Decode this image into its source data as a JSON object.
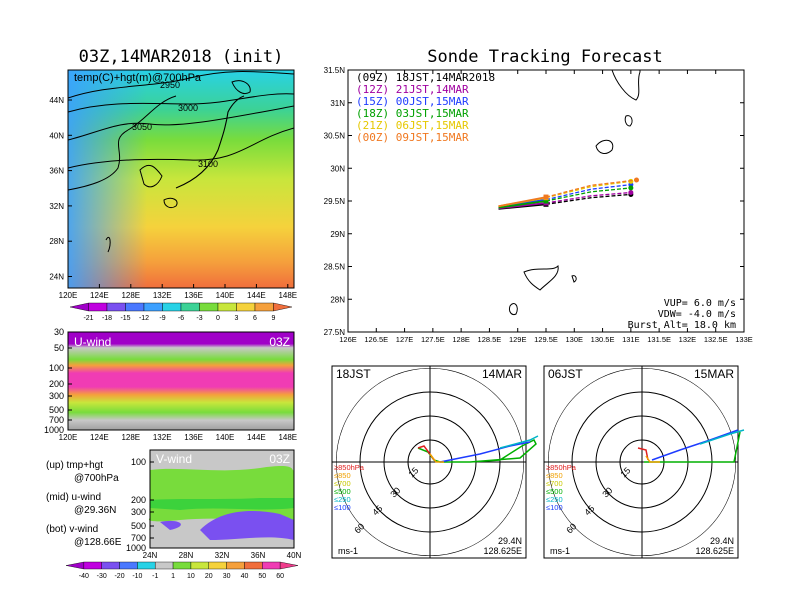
{
  "left_title": "03Z,14MAR2018 (init)",
  "main_title": "Sonde Tracking Forecast",
  "map700": {
    "label": "temp(C)+hgt(m)@700hPa",
    "contours": [
      "2950",
      "3000",
      "3050",
      "3100"
    ],
    "lat_ticks": [
      "44N",
      "40N",
      "36N",
      "32N",
      "28N",
      "24N"
    ],
    "lon_ticks": [
      "120E",
      "124E",
      "128E",
      "132E",
      "136E",
      "140E",
      "144E",
      "148E"
    ],
    "colorbar_labels": [
      "-21",
      "-18",
      "-15",
      "-12",
      "-9",
      "-6",
      "-3",
      "0",
      "3",
      "6",
      "9"
    ],
    "colorbar_colors": [
      "#a000c8",
      "#c000e0",
      "#7a50f0",
      "#4a78ff",
      "#3ca0ff",
      "#28d2e6",
      "#3cd296",
      "#78dc3c",
      "#c8e63c",
      "#f5d23c",
      "#f5a03c",
      "#f06e3c"
    ]
  },
  "uwind": {
    "label": "U-wind",
    "time": "03Z",
    "p_ticks": [
      "30",
      "50",
      "100",
      "200",
      "300",
      "500",
      "700",
      "1000"
    ],
    "lon_ticks": [
      "120E",
      "124E",
      "128E",
      "132E",
      "136E",
      "140E",
      "144E",
      "148E"
    ]
  },
  "vwind": {
    "label": "V-wind",
    "time": "03Z",
    "p_ticks": [
      "100",
      "200",
      "300",
      "500",
      "700",
      "1000"
    ],
    "lat_ticks": [
      "24N",
      "28N",
      "32N",
      "36N",
      "40N"
    ],
    "colorbar_labels": [
      "-40",
      "-30",
      "-20",
      "-10",
      "-1",
      "1",
      "10",
      "20",
      "30",
      "40",
      "50",
      "60"
    ],
    "colorbar_colors": [
      "#a000c8",
      "#c000e0",
      "#7a50f0",
      "#4a78ff",
      "#28d2e6",
      "#c8c8c8",
      "#78dc3c",
      "#c8e63c",
      "#f5d23c",
      "#f5a03c",
      "#f06e3c",
      "#f03cb4",
      "#f03c8c"
    ]
  },
  "notes": [
    {
      "a": "(up) tmp+hgt",
      "b": "@700hPa"
    },
    {
      "a": "(mid) u-wind",
      "b": "@29.36N"
    },
    {
      "a": "(bot) v-wind",
      "b": "@128.66E"
    }
  ],
  "track": {
    "legend": [
      {
        "text": "(09Z) 18JST,14MAR2018",
        "color": "#000000"
      },
      {
        "text": "(12Z) 21JST,14MAR",
        "color": "#a000a0"
      },
      {
        "text": "(15Z) 00JST,15MAR",
        "color": "#1e3cff"
      },
      {
        "text": "(18Z) 03JST,15MAR",
        "color": "#00a000"
      },
      {
        "text": "(21Z) 06JST,15MAR",
        "color": "#e6c800"
      },
      {
        "text": "(00Z) 09JST,15MAR",
        "color": "#f07820"
      }
    ],
    "lat_ticks": [
      "31.5N",
      "31N",
      "30.5N",
      "30N",
      "29.5N",
      "29N",
      "28.5N",
      "28N",
      "27.5N"
    ],
    "lon_ticks": [
      "126E",
      "126.5E",
      "127E",
      "127.5E",
      "128E",
      "128.5E",
      "129E",
      "129.5E",
      "130E",
      "130.5E",
      "131E",
      "131.5E",
      "132E",
      "132.5E",
      "133E"
    ],
    "info": [
      "VUP= 6.0 m/s",
      "VDW= -4.0 m/s",
      "Burst Alt= 18.0 km"
    ]
  },
  "chart_data": {
    "type": "line",
    "xlim": [
      126,
      133
    ],
    "ylim": [
      27.5,
      31.5
    ],
    "xlabel": "",
    "ylabel": "",
    "series": [
      {
        "name": "(09Z) 18JST,14MAR2018",
        "color": "#000000",
        "x": [
          128.66,
          129.5,
          130.3,
          131.0
        ],
        "y": [
          29.38,
          29.45,
          29.55,
          29.6
        ]
      },
      {
        "name": "(12Z) 21JST,14MAR",
        "color": "#a000a0",
        "x": [
          128.66,
          129.5,
          130.3,
          131.0
        ],
        "y": [
          29.39,
          29.47,
          29.58,
          29.63
        ]
      },
      {
        "name": "(15Z) 00JST,15MAR",
        "color": "#1e3cff",
        "x": [
          128.66,
          129.5,
          130.3,
          131.0
        ],
        "y": [
          29.41,
          29.52,
          29.68,
          29.75
        ]
      },
      {
        "name": "(18Z) 03JST,15MAR",
        "color": "#00a000",
        "x": [
          128.66,
          129.5,
          130.3,
          131.0
        ],
        "y": [
          29.4,
          29.5,
          29.64,
          29.7
        ]
      },
      {
        "name": "(21Z) 06JST,15MAR",
        "color": "#e6c800",
        "x": [
          128.66,
          129.5,
          130.3,
          131.0
        ],
        "y": [
          29.42,
          29.55,
          29.72,
          29.8
        ]
      },
      {
        "name": "(00Z) 09JST,15MAR",
        "color": "#f07820",
        "x": [
          128.66,
          129.5,
          130.3,
          131.1
        ],
        "y": [
          29.42,
          29.56,
          29.74,
          29.82
        ]
      }
    ]
  },
  "hodo": [
    {
      "left": "18JST",
      "right": "14MAR",
      "lat": "29.4N",
      "lon": "128.625E",
      "unit": "ms-1",
      "ring_labels": [
        "15",
        "30",
        "45",
        "60"
      ]
    },
    {
      "left": "06JST",
      "right": "15MAR",
      "lat": "29.4N",
      "lon": "128.625E",
      "unit": "ms-1",
      "ring_labels": [
        "15",
        "30",
        "45",
        "60"
      ]
    }
  ],
  "hodo_legend": [
    {
      "text": "≥850hPa",
      "color": "#e02020"
    },
    {
      "text": "≤850",
      "color": "#f0a000"
    },
    {
      "text": "≤700",
      "color": "#c8c800"
    },
    {
      "text": "≤500",
      "color": "#00b000"
    },
    {
      "text": "≤250",
      "color": "#00b4c8"
    },
    {
      "text": "≤100",
      "color": "#1e3cff"
    }
  ]
}
